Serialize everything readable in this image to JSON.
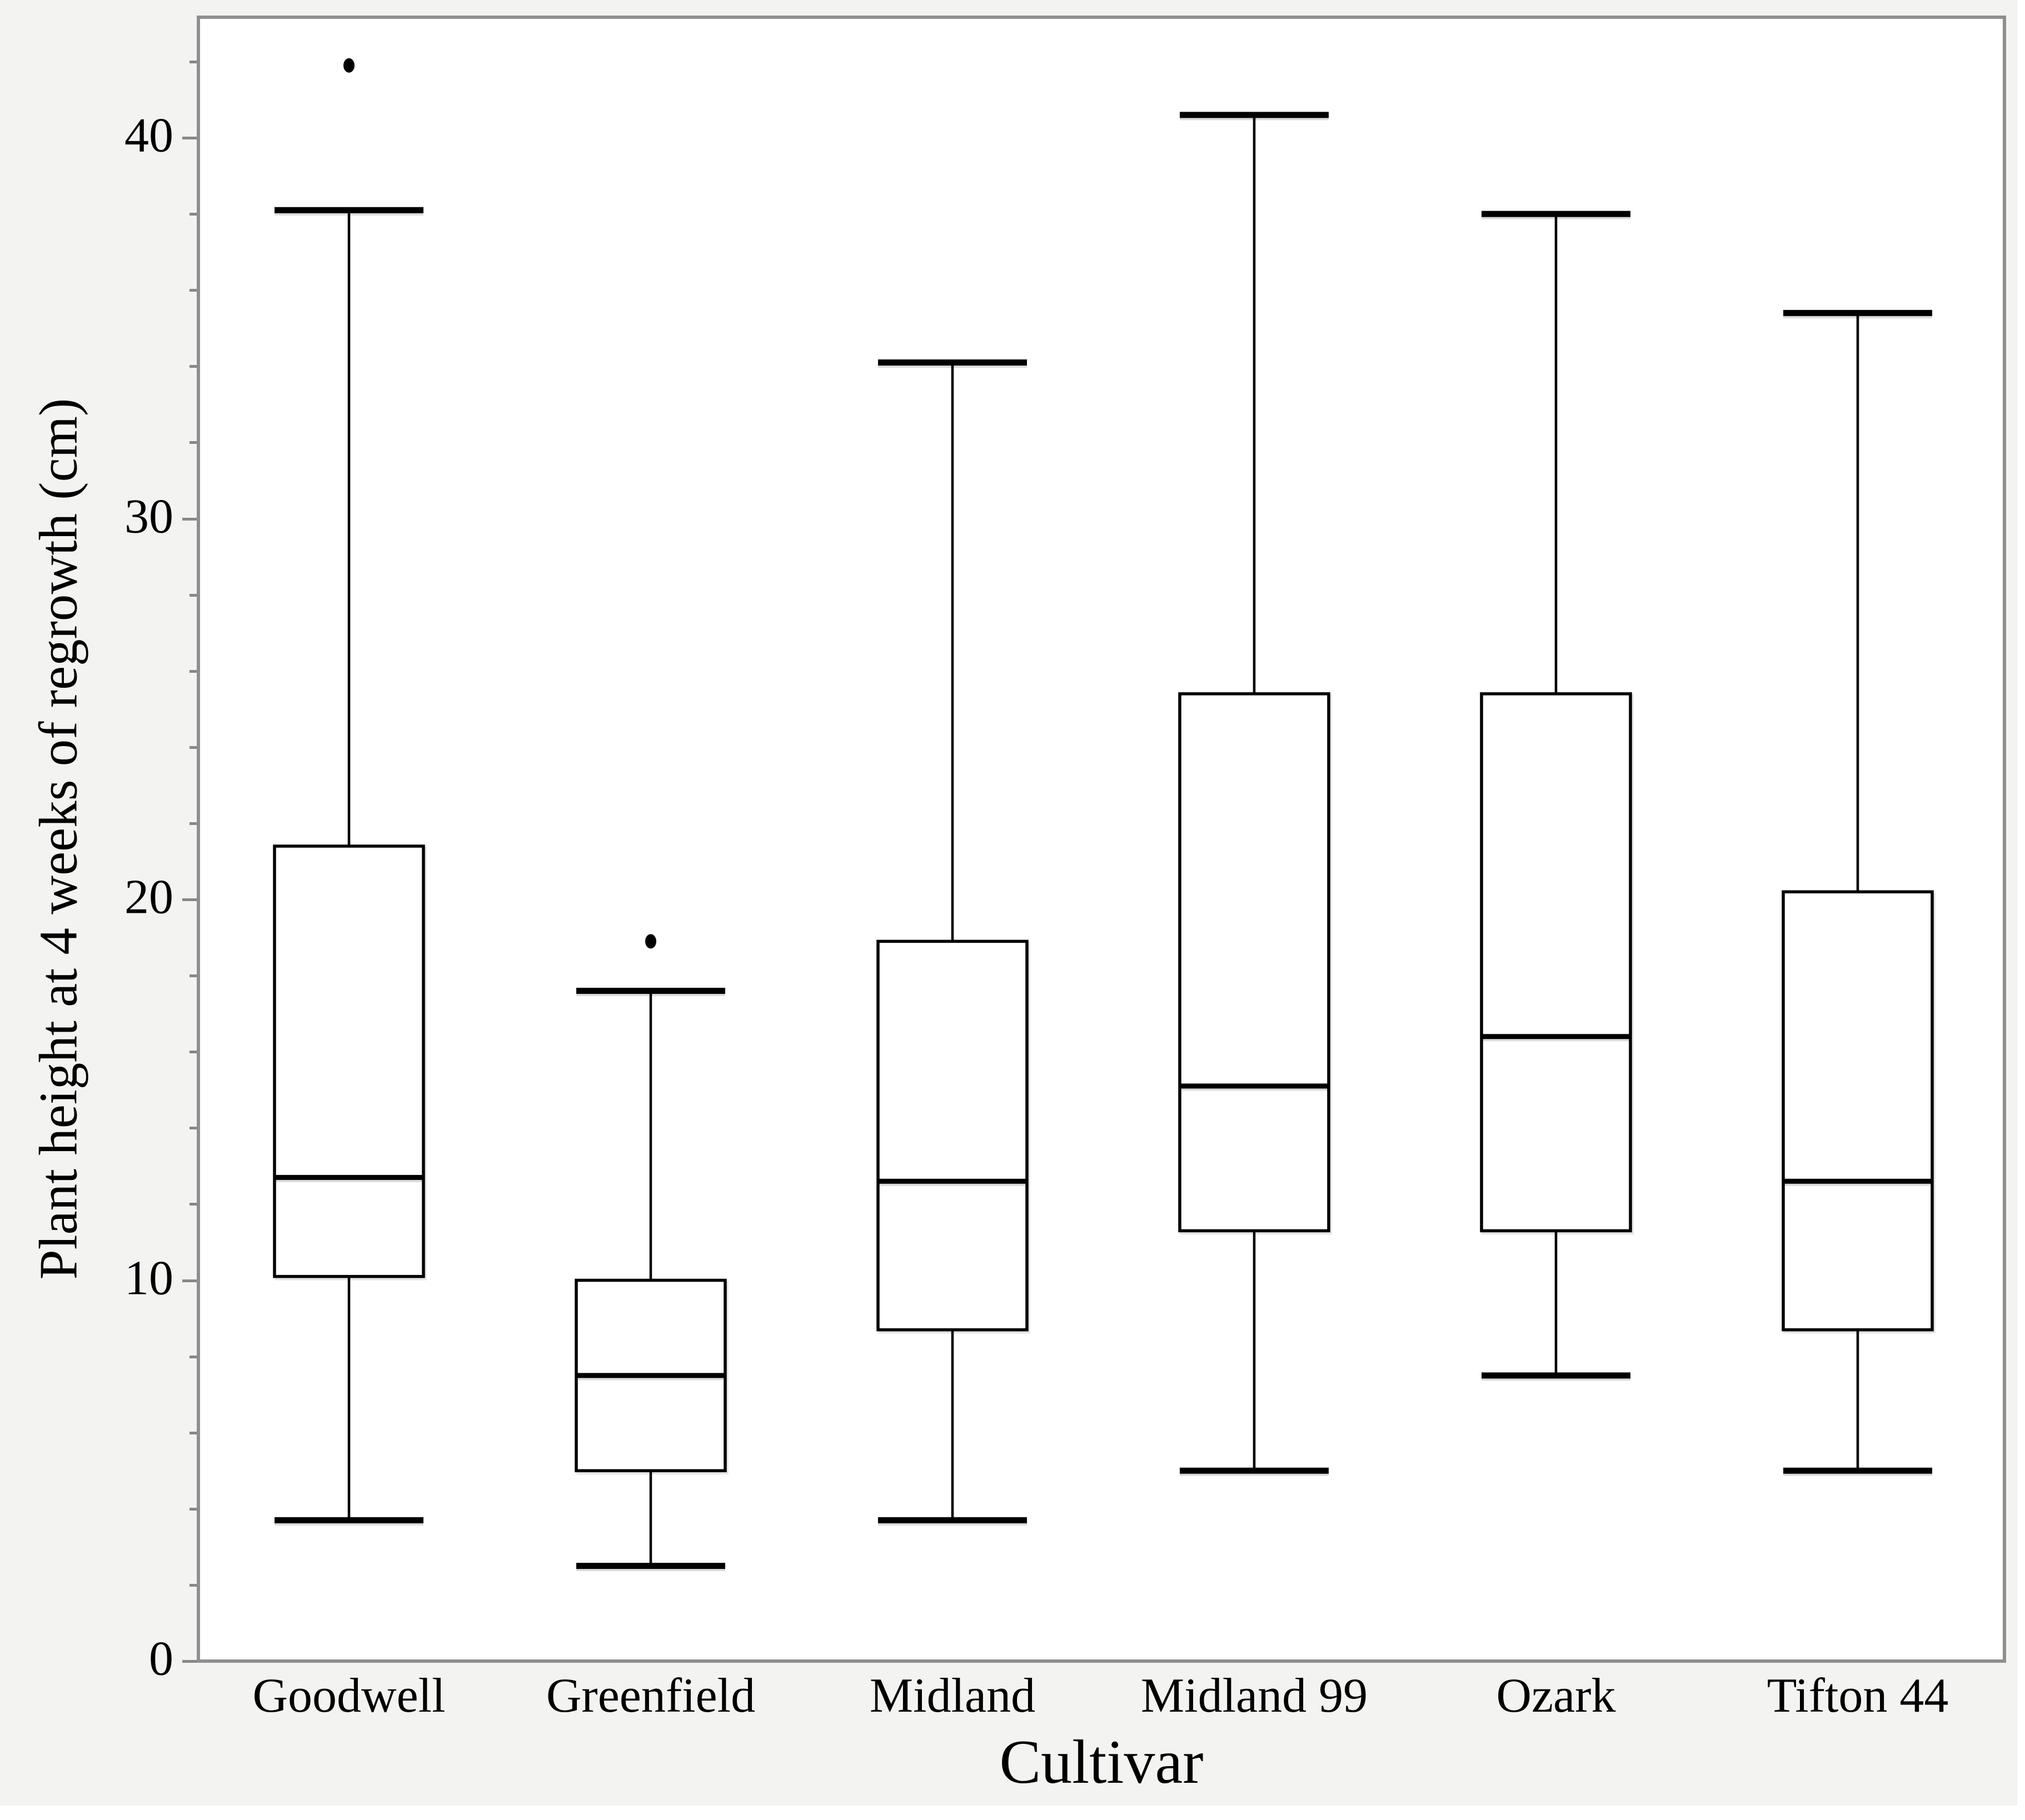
{
  "figure": {
    "background": "#f3f3f1",
    "plot_background": "#ffffff",
    "plot_border_color": "#8f8f8f",
    "line_color": "#000000",
    "tick_color": "#878787"
  },
  "chart_data": {
    "type": "boxplot",
    "title": "",
    "xlabel": "Cultivar",
    "ylabel": "Plant height at 4 weeks of regrowth (cm)",
    "ylim": [
      0,
      43.2
    ],
    "yticks": [
      0,
      10,
      20,
      30,
      40
    ],
    "ytick_minor_step": 2,
    "ytick_minor_max": 42,
    "grid": "off",
    "legend": "none",
    "categories": [
      "Goodwell",
      "Greenfield",
      "Midland",
      "Midland 99",
      "Ozark",
      "Tifton 44"
    ],
    "series": [
      {
        "name": "Goodwell",
        "whisker_low": 3.7,
        "q1": 10.1,
        "median": 12.7,
        "q3": 21.4,
        "whisker_high": 38.1,
        "outliers": [
          41.9
        ]
      },
      {
        "name": "Greenfield",
        "whisker_low": 2.5,
        "q1": 5.0,
        "median": 7.5,
        "q3": 10.0,
        "whisker_high": 17.6,
        "outliers": [
          18.9
        ]
      },
      {
        "name": "Midland",
        "whisker_low": 3.7,
        "q1": 8.7,
        "median": 12.6,
        "q3": 18.9,
        "whisker_high": 34.1,
        "outliers": []
      },
      {
        "name": "Midland 99",
        "whisker_low": 5.0,
        "q1": 11.3,
        "median": 15.1,
        "q3": 25.4,
        "whisker_high": 40.6,
        "outliers": []
      },
      {
        "name": "Ozark",
        "whisker_low": 7.5,
        "q1": 11.3,
        "median": 16.4,
        "q3": 25.4,
        "whisker_high": 38.0,
        "outliers": []
      },
      {
        "name": "Tifton 44",
        "whisker_low": 5.0,
        "q1": 8.7,
        "median": 12.6,
        "q3": 20.2,
        "whisker_high": 35.4,
        "outliers": []
      }
    ]
  }
}
